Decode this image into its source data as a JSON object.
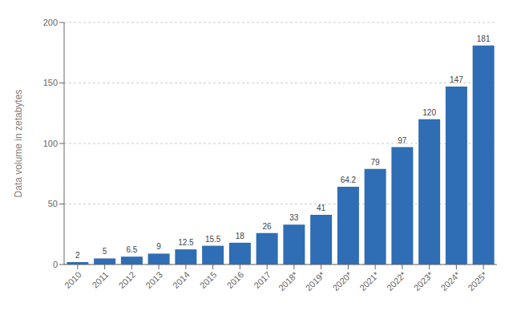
{
  "chart_data": {
    "type": "bar",
    "ylabel": "Data volume in zetabytes",
    "categories": [
      "2010",
      "2011",
      "2012",
      "2013",
      "2014",
      "2015",
      "2016",
      "2017",
      "2018*",
      "2019*",
      "2020*",
      "2021*",
      "2022*",
      "2023*",
      "2024*",
      "2025*"
    ],
    "values": [
      2,
      5,
      6.5,
      9,
      12.5,
      15.5,
      18,
      26,
      33,
      41,
      64.2,
      79,
      97,
      120,
      147,
      181
    ],
    "color": "#2f6db5",
    "ylim": [
      0,
      200
    ],
    "yticks": [
      0,
      50,
      100,
      150,
      200
    ],
    "grid": true,
    "data_labels": true
  }
}
